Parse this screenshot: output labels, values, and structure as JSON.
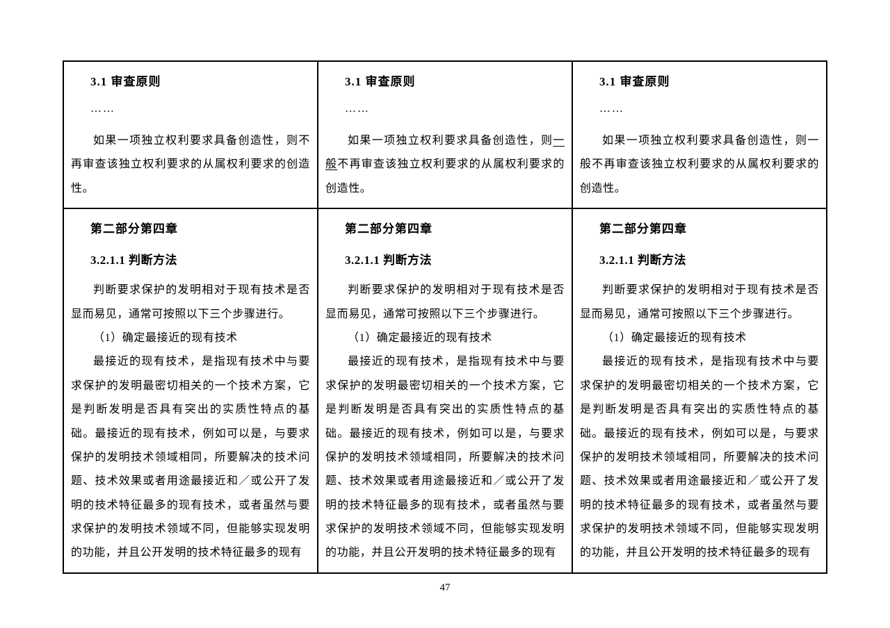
{
  "pageNumber": "47",
  "columns": [
    {
      "section1": {
        "title": "3.1 审查原则",
        "dots": "……",
        "para": "如果一项独立权利要求具备创造性，则不再审查该独立权利要求的从属权利要求的创造性。"
      },
      "section2": {
        "chapter": "第二部分第四章",
        "subsection": "3.2.1.1  判断方法",
        "para1": "判断要求保护的发明相对于现有技术是否显而易见，通常可按照以下三个步骤进行。",
        "step": "（1）确定最接近的现有技术",
        "para2": "最接近的现有技术，是指现有技术中与要求保护的发明最密切相关的一个技术方案，它是判断发明是否具有突出的实质性特点的基础。最接近的现有技术，例如可以是，与要求保护的发明技术领域相同，所要解决的技术问题、技术效果或者用途最接近和／或公开了发明的技术特征最多的现有技术，或者虽然与要求保护的发明技术领域不同，但能够实现发明的功能，并且公开发明的技术特征最多的现有"
      }
    },
    {
      "section1": {
        "title": "3.1 审查原则",
        "dots": "……",
        "para_pre": "如果一项独立权利要求具备创造性，则",
        "para_u1": "一般",
        "para_mid": "不再审查该独立权利要求的从属权利要求的创造性。"
      },
      "section2": {
        "chapter": "第二部分第四章",
        "subsection": "3.2.1.1  判断方法",
        "para1": "判断要求保护的发明相对于现有技术是否显而易见，通常可按照以下三个步骤进行。",
        "step": "（1）确定最接近的现有技术",
        "para2": "最接近的现有技术，是指现有技术中与要求保护的发明最密切相关的一个技术方案，它是判断发明是否具有突出的实质性特点的基础。最接近的现有技术，例如可以是，与要求保护的发明技术领域相同，所要解决的技术问题、技术效果或者用途最接近和／或公开了发明的技术特征最多的现有技术，或者虽然与要求保护的发明技术领域不同，但能够实现发明的功能，并且公开发明的技术特征最多的现有"
      }
    },
    {
      "section1": {
        "title": "3.1 审查原则",
        "dots": "……",
        "para": "如果一项独立权利要求具备创造性，则一般不再审查该独立权利要求的从属权利要求的创造性。"
      },
      "section2": {
        "chapter": "第二部分第四章",
        "subsection": "3.2.1.1  判断方法",
        "para1": "判断要求保护的发明相对于现有技术是否显而易见，通常可按照以下三个步骤进行。",
        "step": "（1）确定最接近的现有技术",
        "para2": "最接近的现有技术，是指现有技术中与要求保护的发明最密切相关的一个技术方案，它是判断发明是否具有突出的实质性特点的基础。最接近的现有技术，例如可以是，与要求保护的发明技术领域相同，所要解决的技术问题、技术效果或者用途最接近和／或公开了发明的技术特征最多的现有技术，或者虽然与要求保护的发明技术领域不同，但能够实现发明的功能，并且公开发明的技术特征最多的现有"
      }
    }
  ]
}
